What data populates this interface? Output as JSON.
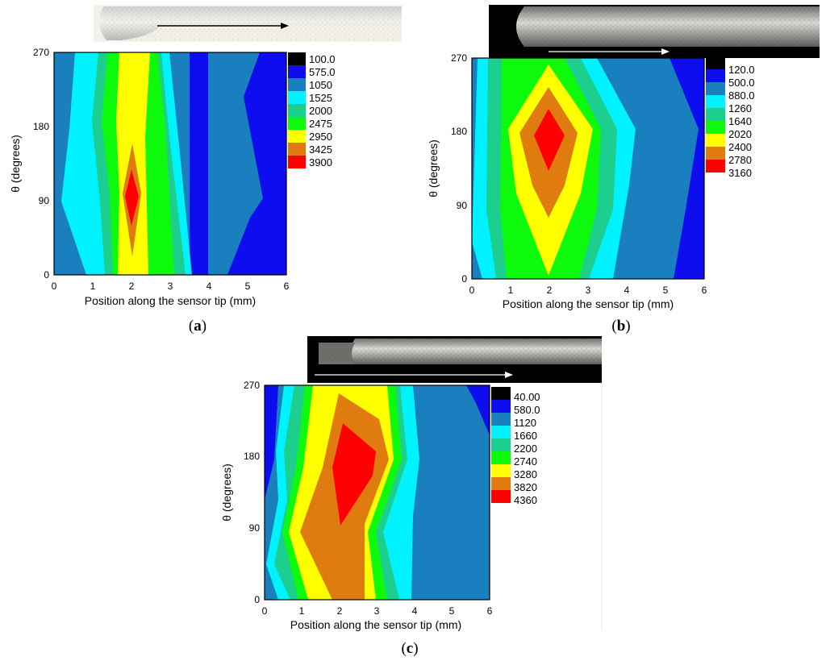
{
  "figure": {
    "panel_labels": [
      "a",
      "b",
      "c"
    ]
  },
  "chart_data": [
    {
      "type": "contour",
      "panel": "a",
      "xlabel": "Position along the sensor tip (mm)",
      "ylabel": "θ (degrees)",
      "xlim": [
        0,
        6
      ],
      "ylim": [
        0,
        270
      ],
      "xticks": [
        "0",
        "1",
        "2",
        "3",
        "4",
        "5",
        "6"
      ],
      "yticks": [
        "0",
        "90",
        "180",
        "270"
      ],
      "legend_levels": [
        "100.0",
        "575.0",
        "1050",
        "1525",
        "2000",
        "2475",
        "2950",
        "3425",
        "3900"
      ],
      "level_colors": [
        "#000000",
        "#0d0df0",
        "#1a7fbf",
        "#00f2ff",
        "#1ccf8f",
        "#0dfa0d",
        "#ffff00",
        "#e07b10",
        "#ff0000"
      ],
      "peak": {
        "x": 2.0,
        "y": 90,
        "value": 3900
      }
    },
    {
      "type": "contour",
      "panel": "b",
      "xlabel": "Position along the sensor tip (mm)",
      "ylabel": "θ (degrees)",
      "xlim": [
        0,
        6
      ],
      "ylim": [
        0,
        270
      ],
      "xticks": [
        "0",
        "1",
        "2",
        "3",
        "4",
        "5",
        "6"
      ],
      "yticks": [
        "0",
        "90",
        "180",
        "270"
      ],
      "legend_levels": [
        "120.0",
        "500.0",
        "880.0",
        "1260",
        "1640",
        "2020",
        "2400",
        "2780",
        "3160"
      ],
      "level_colors": [
        "#000000",
        "#0d0df0",
        "#1a7fbf",
        "#00f2ff",
        "#1ccf8f",
        "#0dfa0d",
        "#ffff00",
        "#e07b10",
        "#ff0000"
      ],
      "peak": {
        "x": 2.0,
        "y": 175,
        "value": 3160
      }
    },
    {
      "type": "contour",
      "panel": "c",
      "xlabel": "Position along the sensor tip (mm)",
      "ylabel": "θ (degrees)",
      "xlim": [
        0,
        6
      ],
      "ylim": [
        0,
        270
      ],
      "xticks": [
        "0",
        "1",
        "2",
        "3",
        "4",
        "5",
        "6"
      ],
      "yticks": [
        "0",
        "90",
        "180",
        "270"
      ],
      "legend_levels": [
        "40.00",
        "580.0",
        "1120",
        "1660",
        "2200",
        "2740",
        "3280",
        "3820",
        "4360"
      ],
      "level_colors": [
        "#000000",
        "#0d0df0",
        "#1a7fbf",
        "#00f2ff",
        "#1ccf8f",
        "#0dfa0d",
        "#ffff00",
        "#e07b10",
        "#ff0000"
      ],
      "peak": {
        "x": 2.5,
        "y": 170,
        "value": 4360
      }
    }
  ]
}
